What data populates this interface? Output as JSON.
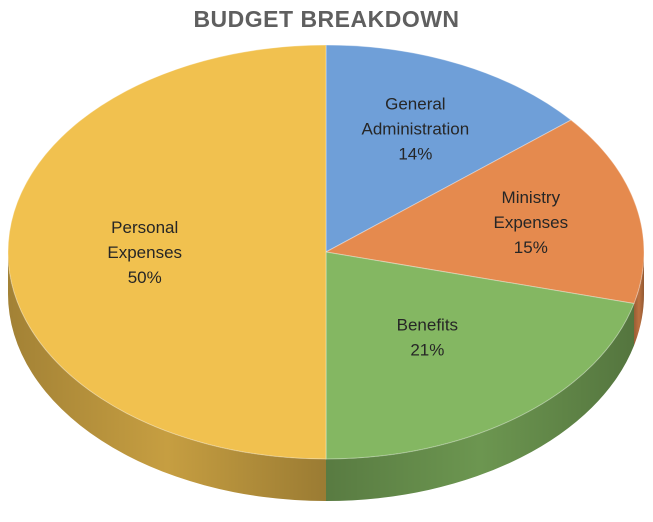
{
  "chart_data": {
    "type": "pie",
    "title": "BUDGET BREAKDOWN",
    "three_d": true,
    "slices": [
      {
        "name": "General Administration",
        "label_lines": [
          "General",
          "Administration"
        ],
        "value": 14,
        "value_label": "14%",
        "color": "#6f9fd8"
      },
      {
        "name": "Ministry Expenses",
        "label_lines": [
          "Ministry",
          "Expenses"
        ],
        "value": 15,
        "value_label": "15%",
        "color": "#e58a4e"
      },
      {
        "name": "Benefits",
        "label_lines": [
          "Benefits"
        ],
        "value": 21,
        "value_label": "21%",
        "color": "#84b762"
      },
      {
        "name": "Personal Expenses",
        "label_lines": [
          "Personal",
          "Expenses"
        ],
        "value": 50,
        "value_label": "50%",
        "color": "#f1c14f"
      }
    ]
  }
}
